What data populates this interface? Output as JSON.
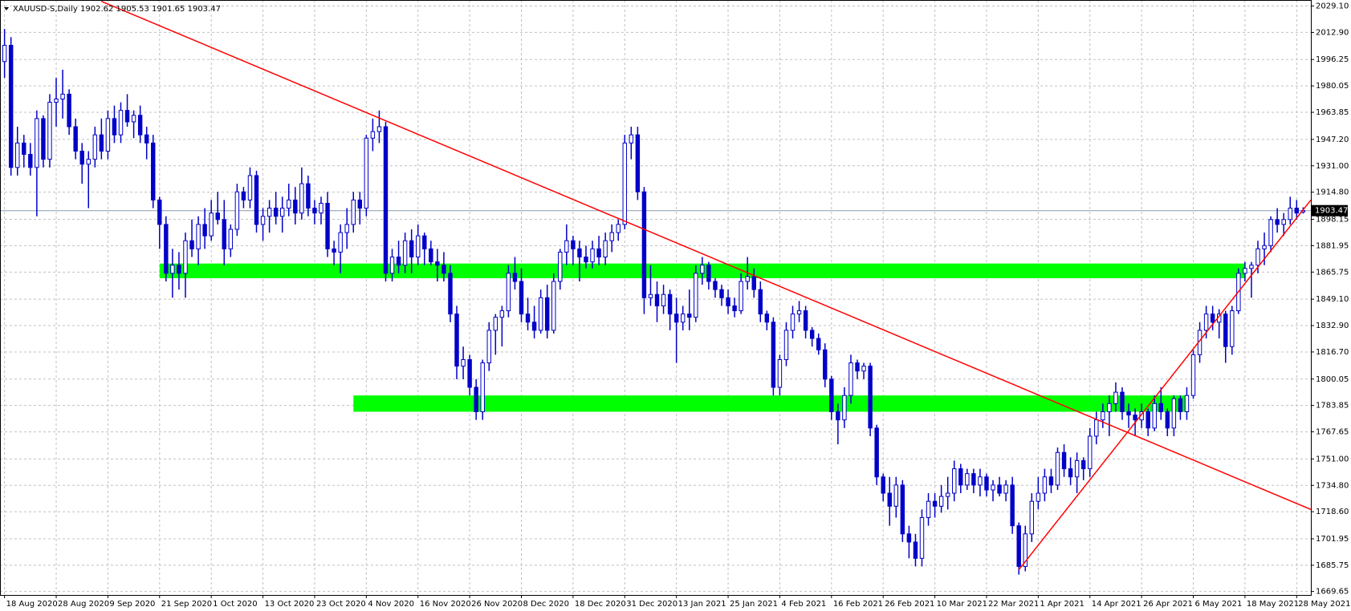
{
  "chart_data": {
    "type": "candlestick",
    "title": "XAUUSD-S,Daily  1902.62 1905.53 1901.65 1903.47",
    "current_price": {
      "value": 1903.47,
      "label": "1903.47"
    },
    "bull_color": "#ffffff",
    "bear_color": "#0000c8",
    "wick_color": "#0000c8",
    "grid": true,
    "ylim": [
      1667.5,
      2032.8
    ],
    "xlim": [
      -0.7,
      202.2
    ],
    "yticks": [
      {
        "value": 2029.1,
        "label": "2029.10"
      },
      {
        "value": 2012.9,
        "label": "2012.90"
      },
      {
        "value": 1996.25,
        "label": "1996.25"
      },
      {
        "value": 1980.05,
        "label": "1980.05"
      },
      {
        "value": 1963.85,
        "label": "1963.85"
      },
      {
        "value": 1947.2,
        "label": "1947.20"
      },
      {
        "value": 1931,
        "label": "1931.00"
      },
      {
        "value": 1914.8,
        "label": "1914.80"
      },
      {
        "value": 1898.15,
        "label": "1898.15"
      },
      {
        "value": 1881.95,
        "label": "1881.95"
      },
      {
        "value": 1865.75,
        "label": "1865.75"
      },
      {
        "value": 1849.1,
        "label": "1849.10"
      },
      {
        "value": 1832.9,
        "label": "1832.90"
      },
      {
        "value": 1816.7,
        "label": "1816.70"
      },
      {
        "value": 1800.05,
        "label": "1800.05"
      },
      {
        "value": 1783.85,
        "label": "1783.85"
      },
      {
        "value": 1767.65,
        "label": "1767.65"
      },
      {
        "value": 1751,
        "label": "1751.00"
      },
      {
        "value": 1734.8,
        "label": "1734.80"
      },
      {
        "value": 1718.6,
        "label": "1718.60"
      },
      {
        "value": 1701.95,
        "label": "1701.95"
      },
      {
        "value": 1685.75,
        "label": "1685.75"
      },
      {
        "value": 1669.65,
        "label": "1669.65"
      }
    ],
    "xticks": [
      {
        "value": 0,
        "label": "18 Aug 2020"
      },
      {
        "value": 8,
        "label": "28 Aug 2020"
      },
      {
        "value": 16,
        "label": "9 Sep 2020"
      },
      {
        "value": 24,
        "label": "21 Sep 2020"
      },
      {
        "value": 32,
        "label": "1 Oct 2020"
      },
      {
        "value": 40,
        "label": "13 Oct 2020"
      },
      {
        "value": 48,
        "label": "23 Oct 2020"
      },
      {
        "value": 56,
        "label": "4 Nov 2020"
      },
      {
        "value": 64,
        "label": "16 Nov 2020"
      },
      {
        "value": 72,
        "label": "26 Nov 2020"
      },
      {
        "value": 80,
        "label": "8 Dec 2020"
      },
      {
        "value": 88,
        "label": "18 Dec 2020"
      },
      {
        "value": 96,
        "label": "31 Dec 2020"
      },
      {
        "value": 104,
        "label": "13 Jan 2021"
      },
      {
        "value": 112,
        "label": "25 Jan 2021"
      },
      {
        "value": 120,
        "label": "4 Feb 2021"
      },
      {
        "value": 128,
        "label": "16 Feb 2021"
      },
      {
        "value": 136,
        "label": "26 Feb 2021"
      },
      {
        "value": 144,
        "label": "10 Mar 2021"
      },
      {
        "value": 152,
        "label": "22 Mar 2021"
      },
      {
        "value": 160,
        "label": "1 Apr 2021"
      },
      {
        "value": 168,
        "label": "14 Apr 2021"
      },
      {
        "value": 176,
        "label": "26 Apr 2021"
      },
      {
        "value": 184,
        "label": "6 May 2021"
      },
      {
        "value": 192,
        "label": "18 May 2021"
      },
      {
        "value": 200,
        "label": "28 May 2021"
      }
    ],
    "zones": [
      {
        "x": [
          24,
          192
        ],
        "y": [
          1862,
          1871
        ],
        "color": "#00ff00"
      },
      {
        "x": [
          54,
          183
        ],
        "y": [
          1780,
          1790
        ],
        "color": "#00ff00"
      }
    ],
    "trendlines": [
      {
        "x": [
          15,
          202.2
        ],
        "y": [
          2032,
          1720
        ],
        "color": "#ff0000"
      },
      {
        "x": [
          157,
          202.2
        ],
        "y": [
          1683,
          1910
        ],
        "color": "#ff0000"
      }
    ],
    "ohlc": [
      [
        1995,
        2015,
        1985,
        2005
      ],
      [
        2005,
        2010,
        1925,
        1930
      ],
      [
        1930,
        1955,
        1925,
        1945
      ],
      [
        1945,
        1950,
        1930,
        1938
      ],
      [
        1938,
        1945,
        1925,
        1930
      ],
      [
        1930,
        1965,
        1900,
        1960
      ],
      [
        1960,
        1962,
        1930,
        1935
      ],
      [
        1935,
        1975,
        1930,
        1970
      ],
      [
        1970,
        1985,
        1955,
        1972
      ],
      [
        1972,
        1990,
        1960,
        1975
      ],
      [
        1975,
        1978,
        1950,
        1955
      ],
      [
        1955,
        1960,
        1935,
        1940
      ],
      [
        1940,
        1945,
        1920,
        1932
      ],
      [
        1932,
        1940,
        1905,
        1935
      ],
      [
        1935,
        1955,
        1930,
        1950
      ],
      [
        1950,
        1960,
        1935,
        1940
      ],
      [
        1940,
        1965,
        1935,
        1960
      ],
      [
        1960,
        1968,
        1945,
        1950
      ],
      [
        1950,
        1970,
        1945,
        1965
      ],
      [
        1965,
        1975,
        1955,
        1958
      ],
      [
        1958,
        1965,
        1948,
        1962
      ],
      [
        1962,
        1968,
        1945,
        1950
      ],
      [
        1950,
        1955,
        1935,
        1945
      ],
      [
        1945,
        1950,
        1905,
        1910
      ],
      [
        1910,
        1912,
        1880,
        1895
      ],
      [
        1895,
        1900,
        1860,
        1865
      ],
      [
        1865,
        1880,
        1850,
        1870
      ],
      [
        1870,
        1878,
        1855,
        1865
      ],
      [
        1865,
        1890,
        1850,
        1885
      ],
      [
        1885,
        1898,
        1875,
        1880
      ],
      [
        1880,
        1900,
        1870,
        1895
      ],
      [
        1895,
        1905,
        1880,
        1888
      ],
      [
        1888,
        1910,
        1885,
        1902
      ],
      [
        1902,
        1915,
        1895,
        1898
      ],
      [
        1898,
        1910,
        1870,
        1880
      ],
      [
        1880,
        1895,
        1875,
        1892
      ],
      [
        1892,
        1920,
        1888,
        1915
      ],
      [
        1915,
        1918,
        1905,
        1910
      ],
      [
        1910,
        1930,
        1905,
        1925
      ],
      [
        1925,
        1928,
        1890,
        1895
      ],
      [
        1895,
        1905,
        1885,
        1900
      ],
      [
        1900,
        1910,
        1890,
        1905
      ],
      [
        1905,
        1915,
        1895,
        1900
      ],
      [
        1900,
        1912,
        1890,
        1905
      ],
      [
        1905,
        1920,
        1900,
        1910
      ],
      [
        1910,
        1918,
        1895,
        1902
      ],
      [
        1902,
        1930,
        1898,
        1920
      ],
      [
        1920,
        1925,
        1900,
        1905
      ],
      [
        1905,
        1910,
        1895,
        1902
      ],
      [
        1902,
        1912,
        1895,
        1908
      ],
      [
        1908,
        1915,
        1875,
        1880
      ],
      [
        1880,
        1885,
        1870,
        1878
      ],
      [
        1878,
        1895,
        1865,
        1890
      ],
      [
        1890,
        1905,
        1880,
        1895
      ],
      [
        1895,
        1915,
        1890,
        1910
      ],
      [
        1910,
        1915,
        1895,
        1905
      ],
      [
        1905,
        1950,
        1900,
        1948
      ],
      [
        1948,
        1960,
        1940,
        1952
      ],
      [
        1952,
        1965,
        1945,
        1955
      ],
      [
        1955,
        1958,
        1860,
        1865
      ],
      [
        1865,
        1880,
        1860,
        1875
      ],
      [
        1875,
        1885,
        1865,
        1870
      ],
      [
        1870,
        1890,
        1865,
        1885
      ],
      [
        1885,
        1892,
        1865,
        1875
      ],
      [
        1875,
        1895,
        1870,
        1888
      ],
      [
        1888,
        1890,
        1870,
        1880
      ],
      [
        1880,
        1885,
        1870,
        1872
      ],
      [
        1872,
        1880,
        1860,
        1870
      ],
      [
        1870,
        1878,
        1860,
        1865
      ],
      [
        1865,
        1870,
        1835,
        1840
      ],
      [
        1840,
        1845,
        1800,
        1808
      ],
      [
        1808,
        1820,
        1800,
        1812
      ],
      [
        1812,
        1815,
        1790,
        1795
      ],
      [
        1795,
        1800,
        1775,
        1780
      ],
      [
        1780,
        1812,
        1775,
        1810
      ],
      [
        1810,
        1835,
        1805,
        1830
      ],
      [
        1830,
        1840,
        1815,
        1838
      ],
      [
        1838,
        1845,
        1820,
        1842
      ],
      [
        1842,
        1870,
        1838,
        1865
      ],
      [
        1865,
        1875,
        1855,
        1860
      ],
      [
        1860,
        1868,
        1835,
        1840
      ],
      [
        1840,
        1850,
        1830,
        1835
      ],
      [
        1835,
        1845,
        1825,
        1830
      ],
      [
        1830,
        1855,
        1828,
        1850
      ],
      [
        1850,
        1858,
        1825,
        1830
      ],
      [
        1830,
        1865,
        1828,
        1860
      ],
      [
        1860,
        1880,
        1855,
        1878
      ],
      [
        1878,
        1895,
        1870,
        1885
      ],
      [
        1885,
        1888,
        1870,
        1880
      ],
      [
        1880,
        1885,
        1860,
        1875
      ],
      [
        1875,
        1882,
        1868,
        1872
      ],
      [
        1872,
        1885,
        1868,
        1880
      ],
      [
        1880,
        1888,
        1870,
        1875
      ],
      [
        1875,
        1890,
        1870,
        1885
      ],
      [
        1885,
        1895,
        1878,
        1890
      ],
      [
        1890,
        1898,
        1885,
        1895
      ],
      [
        1895,
        1950,
        1892,
        1945
      ],
      [
        1945,
        1955,
        1935,
        1950
      ],
      [
        1950,
        1955,
        1910,
        1915
      ],
      [
        1915,
        1918,
        1840,
        1850
      ],
      [
        1850,
        1870,
        1845,
        1852
      ],
      [
        1852,
        1860,
        1835,
        1845
      ],
      [
        1845,
        1858,
        1840,
        1852
      ],
      [
        1852,
        1855,
        1830,
        1840
      ],
      [
        1840,
        1850,
        1810,
        1835
      ],
      [
        1835,
        1845,
        1830,
        1840
      ],
      [
        1840,
        1855,
        1830,
        1838
      ],
      [
        1838,
        1870,
        1835,
        1865
      ],
      [
        1865,
        1875,
        1858,
        1870
      ],
      [
        1870,
        1872,
        1855,
        1860
      ],
      [
        1860,
        1862,
        1850,
        1855
      ],
      [
        1855,
        1858,
        1845,
        1850
      ],
      [
        1850,
        1855,
        1840,
        1845
      ],
      [
        1845,
        1850,
        1838,
        1842
      ],
      [
        1842,
        1865,
        1840,
        1860
      ],
      [
        1860,
        1875,
        1855,
        1863
      ],
      [
        1863,
        1868,
        1850,
        1855
      ],
      [
        1855,
        1860,
        1835,
        1840
      ],
      [
        1840,
        1842,
        1830,
        1835
      ],
      [
        1835,
        1838,
        1790,
        1795
      ],
      [
        1795,
        1815,
        1790,
        1812
      ],
      [
        1812,
        1835,
        1808,
        1830
      ],
      [
        1830,
        1845,
        1825,
        1840
      ],
      [
        1840,
        1848,
        1835,
        1842
      ],
      [
        1842,
        1845,
        1825,
        1830
      ],
      [
        1830,
        1832,
        1820,
        1825
      ],
      [
        1825,
        1828,
        1815,
        1818
      ],
      [
        1818,
        1822,
        1795,
        1800
      ],
      [
        1800,
        1802,
        1775,
        1780
      ],
      [
        1780,
        1785,
        1760,
        1775
      ],
      [
        1775,
        1795,
        1770,
        1790
      ],
      [
        1790,
        1815,
        1785,
        1810
      ],
      [
        1810,
        1812,
        1800,
        1805
      ],
      [
        1805,
        1810,
        1800,
        1808
      ],
      [
        1808,
        1810,
        1765,
        1770
      ],
      [
        1770,
        1772,
        1735,
        1740
      ],
      [
        1740,
        1742,
        1725,
        1730
      ],
      [
        1730,
        1740,
        1710,
        1722
      ],
      [
        1722,
        1740,
        1715,
        1735
      ],
      [
        1735,
        1738,
        1700,
        1705
      ],
      [
        1705,
        1710,
        1690,
        1700
      ],
      [
        1700,
        1705,
        1685,
        1690
      ],
      [
        1690,
        1720,
        1685,
        1715
      ],
      [
        1715,
        1730,
        1710,
        1725
      ],
      [
        1725,
        1730,
        1715,
        1722
      ],
      [
        1722,
        1735,
        1718,
        1728
      ],
      [
        1728,
        1740,
        1720,
        1730
      ],
      [
        1730,
        1750,
        1725,
        1745
      ],
      [
        1745,
        1748,
        1730,
        1735
      ],
      [
        1735,
        1745,
        1732,
        1742
      ],
      [
        1742,
        1745,
        1730,
        1735
      ],
      [
        1735,
        1745,
        1728,
        1740
      ],
      [
        1740,
        1742,
        1728,
        1732
      ],
      [
        1732,
        1738,
        1725,
        1735
      ],
      [
        1735,
        1740,
        1728,
        1730
      ],
      [
        1730,
        1738,
        1725,
        1735
      ],
      [
        1735,
        1740,
        1705,
        1710
      ],
      [
        1710,
        1712,
        1680,
        1685
      ],
      [
        1685,
        1710,
        1682,
        1705
      ],
      [
        1705,
        1730,
        1700,
        1725
      ],
      [
        1725,
        1740,
        1720,
        1730
      ],
      [
        1730,
        1745,
        1725,
        1740
      ],
      [
        1740,
        1745,
        1730,
        1735
      ],
      [
        1735,
        1758,
        1732,
        1755
      ],
      [
        1755,
        1760,
        1740,
        1745
      ],
      [
        1745,
        1752,
        1735,
        1740
      ],
      [
        1740,
        1755,
        1730,
        1750
      ],
      [
        1750,
        1752,
        1738,
        1745
      ],
      [
        1745,
        1770,
        1740,
        1765
      ],
      [
        1765,
        1780,
        1760,
        1775
      ],
      [
        1775,
        1785,
        1770,
        1780
      ],
      [
        1780,
        1790,
        1765,
        1785
      ],
      [
        1785,
        1798,
        1780,
        1792
      ],
      [
        1792,
        1795,
        1775,
        1780
      ],
      [
        1780,
        1785,
        1770,
        1778
      ],
      [
        1778,
        1782,
        1765,
        1775
      ],
      [
        1775,
        1785,
        1770,
        1780
      ],
      [
        1780,
        1782,
        1765,
        1770
      ],
      [
        1770,
        1790,
        1768,
        1785
      ],
      [
        1785,
        1795,
        1775,
        1780
      ],
      [
        1780,
        1782,
        1765,
        1770
      ],
      [
        1770,
        1790,
        1765,
        1788
      ],
      [
        1788,
        1790,
        1775,
        1780
      ],
      [
        1780,
        1795,
        1775,
        1790
      ],
      [
        1790,
        1818,
        1788,
        1815
      ],
      [
        1815,
        1835,
        1810,
        1830
      ],
      [
        1830,
        1845,
        1825,
        1840
      ],
      [
        1840,
        1845,
        1830,
        1835
      ],
      [
        1835,
        1843,
        1825,
        1840
      ],
      [
        1840,
        1842,
        1810,
        1820
      ],
      [
        1820,
        1845,
        1815,
        1842
      ],
      [
        1842,
        1868,
        1840,
        1865
      ],
      [
        1865,
        1872,
        1860,
        1868
      ],
      [
        1868,
        1872,
        1850,
        1870
      ],
      [
        1870,
        1885,
        1865,
        1880
      ],
      [
        1880,
        1890,
        1870,
        1882
      ],
      [
        1882,
        1900,
        1878,
        1898
      ],
      [
        1898,
        1905,
        1890,
        1895
      ],
      [
        1895,
        1902,
        1888,
        1898
      ],
      [
        1898,
        1912,
        1895,
        1905
      ],
      [
        1905,
        1910,
        1898,
        1902
      ],
      [
        1902.62,
        1905.53,
        1901.65,
        1903.47
      ]
    ]
  }
}
